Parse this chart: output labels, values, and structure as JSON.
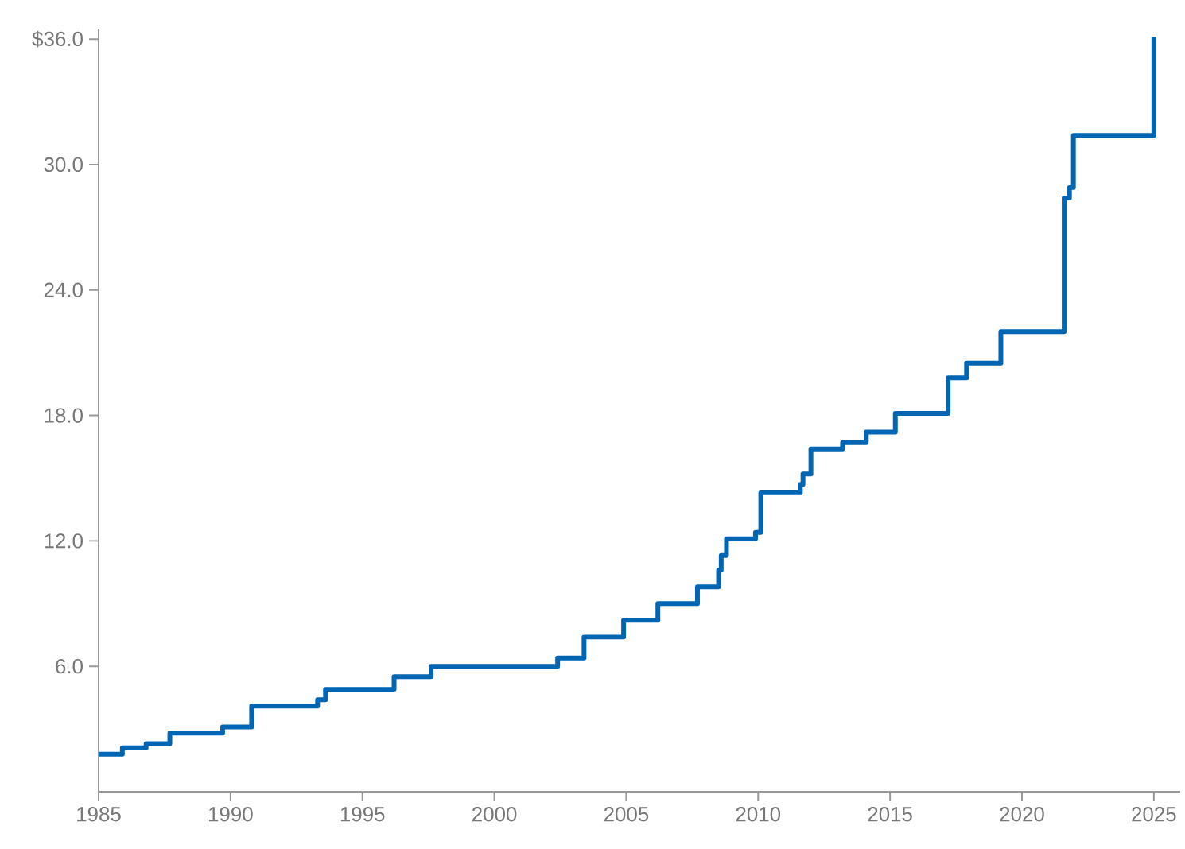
{
  "chart_data": {
    "type": "step",
    "color": "#0066b3",
    "x": [
      1985.0,
      1985.9,
      1986.8,
      1987.7,
      1989.7,
      1990.8,
      1993.3,
      1993.6,
      1996.2,
      1997.6,
      2002.4,
      2003.4,
      2004.9,
      2006.2,
      2007.7,
      2008.5,
      2008.6,
      2008.8,
      2009.9,
      2010.1,
      2011.6,
      2011.7,
      2012.0,
      2013.2,
      2014.1,
      2015.2,
      2017.2,
      2017.9,
      2019.2,
      2021.6,
      2021.8,
      2021.95,
      2025.0
    ],
    "values": [
      1.8,
      2.1,
      2.3,
      2.8,
      3.1,
      4.1,
      4.4,
      4.9,
      5.5,
      6.0,
      6.4,
      7.4,
      8.2,
      9.0,
      9.8,
      10.6,
      11.3,
      12.1,
      12.4,
      14.3,
      14.7,
      15.2,
      16.4,
      16.7,
      17.2,
      18.1,
      19.8,
      20.5,
      22.0,
      28.4,
      28.9,
      31.4,
      36.1
    ],
    "xlim": [
      1985,
      2026
    ],
    "ylim": [
      0,
      36.5
    ],
    "xticks": [
      1985,
      1990,
      1995,
      2000,
      2005,
      2010,
      2015,
      2020,
      2025
    ],
    "yticks": [
      {
        "value": 6,
        "label": "6.0"
      },
      {
        "value": 12,
        "label": "12.0"
      },
      {
        "value": 18,
        "label": "18.0"
      },
      {
        "value": 24,
        "label": "24.0"
      },
      {
        "value": 30,
        "label": "30.0"
      },
      {
        "value": 36,
        "label": "$36.0"
      }
    ],
    "grid": false
  }
}
